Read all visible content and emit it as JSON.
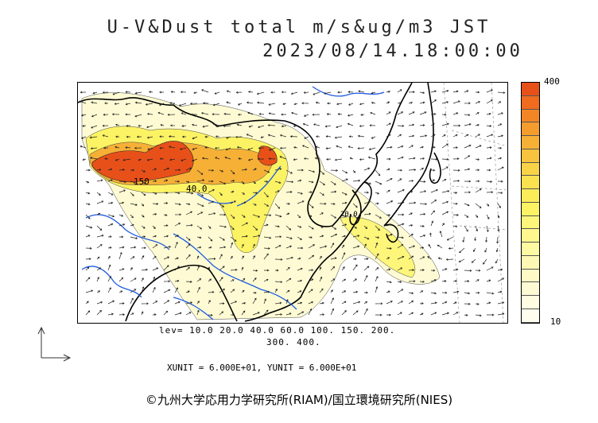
{
  "title": {
    "line1": "U-V&Dust total m/s&ug/m3 JST",
    "line2": "2023/08/14.18:00:00"
  },
  "colorbar": {
    "max_label": "400",
    "min_label": "10",
    "colors": [
      "#e8501a",
      "#ef6b1e",
      "#f28627",
      "#f49c2e",
      "#f6b036",
      "#f8c33e",
      "#f9d347",
      "#fae150",
      "#fbec59",
      "#fcf364",
      "#fdf67a",
      "#fdf78e",
      "#fdf8a2",
      "#fdf9b4",
      "#fefac5",
      "#fefbd4",
      "#fffce2",
      "#fffdee"
    ]
  },
  "levels": {
    "line1": "lev= 10.0 20.0 40.0 60.0 100. 150. 200.",
    "line2": "300. 400."
  },
  "contour_labels": [
    "150",
    "40.0",
    "20.0"
  ],
  "unit_text": "XUNIT = 6.000E+01, YUNIT = 6.000E+01",
  "credit": "©九州大学応用力学研究所(RIAM)/国立環境研究所(NIES)",
  "palette": {
    "land_outline": "#000000",
    "river": "#1f5be0",
    "wind_arrow": "#222222",
    "grid": "#9a9a9a"
  }
}
